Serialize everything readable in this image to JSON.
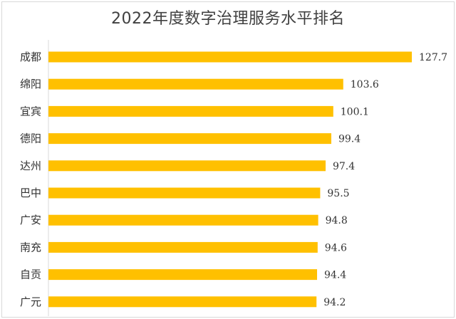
{
  "chart_data": {
    "type": "bar",
    "orientation": "horizontal",
    "title": "2022年度数字治理服务水平排名",
    "categories": [
      "成都",
      "绵阳",
      "宜宾",
      "德阳",
      "达州",
      "巴中",
      "广安",
      "南充",
      "自贡",
      "广元"
    ],
    "values": [
      127.7,
      103.6,
      100.1,
      99.4,
      97.4,
      95.5,
      94.8,
      94.6,
      94.4,
      94.2
    ],
    "xlim": [
      0,
      127.7
    ],
    "bar_color": "#FFC000",
    "grid": false,
    "data_labels": true
  }
}
